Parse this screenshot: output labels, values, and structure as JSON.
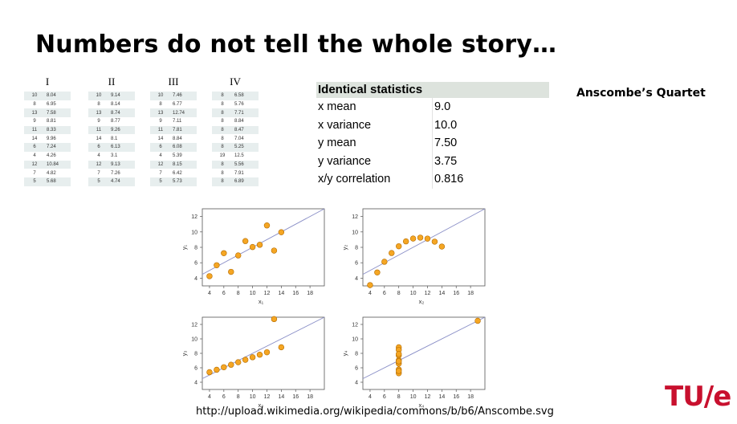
{
  "title": "Numbers do not tell the whole story…",
  "quartet_label": "Anscombe’s Quartet",
  "credit": "http://upload.wikimedia.org/wikipedia/commons/b/b6/Anscombe.svg",
  "logo": "TU/e",
  "datasets": [
    {
      "label": "I",
      "x": [
        "10",
        "8",
        "13",
        "9",
        "11",
        "14",
        "6",
        "4",
        "12",
        "7",
        "5"
      ],
      "y": [
        "8.04",
        "6.95",
        "7.58",
        "8.81",
        "8.33",
        "9.96",
        "7.24",
        "4.26",
        "10.84",
        "4.82",
        "5.68"
      ]
    },
    {
      "label": "II",
      "x": [
        "10",
        "8",
        "13",
        "9",
        "11",
        "14",
        "6",
        "4",
        "12",
        "7",
        "5"
      ],
      "y": [
        "9.14",
        "8.14",
        "8.74",
        "8.77",
        "9.26",
        "8.1",
        "6.13",
        "3.1",
        "9.13",
        "7.26",
        "4.74"
      ]
    },
    {
      "label": "III",
      "x": [
        "10",
        "8",
        "13",
        "9",
        "11",
        "14",
        "6",
        "4",
        "12",
        "7",
        "5"
      ],
      "y": [
        "7.46",
        "6.77",
        "12.74",
        "7.11",
        "7.81",
        "8.84",
        "6.08",
        "5.39",
        "8.15",
        "6.42",
        "5.73"
      ]
    },
    {
      "label": "IV",
      "x": [
        "8",
        "8",
        "8",
        "8",
        "8",
        "8",
        "8",
        "19",
        "8",
        "8",
        "8"
      ],
      "y": [
        "6.58",
        "5.76",
        "7.71",
        "8.84",
        "8.47",
        "7.04",
        "5.25",
        "12.5",
        "5.56",
        "7.91",
        "6.89"
      ]
    }
  ],
  "stats": {
    "header": "Identical statistics",
    "rows": [
      {
        "label": "x mean",
        "value": "9.0"
      },
      {
        "label": "x variance",
        "value": "10.0"
      },
      {
        "label": "y mean",
        "value": "7.50"
      },
      {
        "label": "y variance",
        "value": "3.75"
      },
      {
        "label": "x/y correlation",
        "value": "0.816"
      }
    ]
  },
  "colors": {
    "point_fill": "#f5a623",
    "point_stroke": "#b36b00",
    "line": "#8a8fc7",
    "logo": "#c8102e"
  },
  "chart_data": [
    {
      "type": "scatter",
      "xlabel": "x₁",
      "ylabel": "y₁",
      "xlim": [
        3,
        20
      ],
      "ylim": [
        3,
        13
      ],
      "xticks": [
        4,
        6,
        8,
        10,
        12,
        14,
        16,
        18
      ],
      "yticks": [
        4,
        6,
        8,
        10,
        12
      ],
      "x": [
        10,
        8,
        13,
        9,
        11,
        14,
        6,
        4,
        12,
        7,
        5
      ],
      "y": [
        8.04,
        6.95,
        7.58,
        8.81,
        8.33,
        9.96,
        7.24,
        4.26,
        10.84,
        4.82,
        5.68
      ],
      "fit": {
        "intercept": 3.0,
        "slope": 0.5
      }
    },
    {
      "type": "scatter",
      "xlabel": "x₂",
      "ylabel": "y₂",
      "xlim": [
        3,
        20
      ],
      "ylim": [
        3,
        13
      ],
      "xticks": [
        4,
        6,
        8,
        10,
        12,
        14,
        16,
        18
      ],
      "yticks": [
        4,
        6,
        8,
        10,
        12
      ],
      "x": [
        10,
        8,
        13,
        9,
        11,
        14,
        6,
        4,
        12,
        7,
        5
      ],
      "y": [
        9.14,
        8.14,
        8.74,
        8.77,
        9.26,
        8.1,
        6.13,
        3.1,
        9.13,
        7.26,
        4.74
      ],
      "fit": {
        "intercept": 3.0,
        "slope": 0.5
      }
    },
    {
      "type": "scatter",
      "xlabel": "x₃",
      "ylabel": "y₃",
      "xlim": [
        3,
        20
      ],
      "ylim": [
        3,
        13
      ],
      "xticks": [
        4,
        6,
        8,
        10,
        12,
        14,
        16,
        18
      ],
      "yticks": [
        4,
        6,
        8,
        10,
        12
      ],
      "x": [
        10,
        8,
        13,
        9,
        11,
        14,
        6,
        4,
        12,
        7,
        5
      ],
      "y": [
        7.46,
        6.77,
        12.74,
        7.11,
        7.81,
        8.84,
        6.08,
        5.39,
        8.15,
        6.42,
        5.73
      ],
      "fit": {
        "intercept": 3.0,
        "slope": 0.5
      }
    },
    {
      "type": "scatter",
      "xlabel": "x₄",
      "ylabel": "y₄",
      "xlim": [
        3,
        20
      ],
      "ylim": [
        3,
        13
      ],
      "xticks": [
        4,
        6,
        8,
        10,
        12,
        14,
        16,
        18
      ],
      "yticks": [
        4,
        6,
        8,
        10,
        12
      ],
      "x": [
        8,
        8,
        8,
        8,
        8,
        8,
        8,
        19,
        8,
        8,
        8
      ],
      "y": [
        6.58,
        5.76,
        7.71,
        8.84,
        8.47,
        7.04,
        5.25,
        12.5,
        5.56,
        7.91,
        6.89
      ],
      "fit": {
        "intercept": 3.0,
        "slope": 0.5
      }
    }
  ]
}
